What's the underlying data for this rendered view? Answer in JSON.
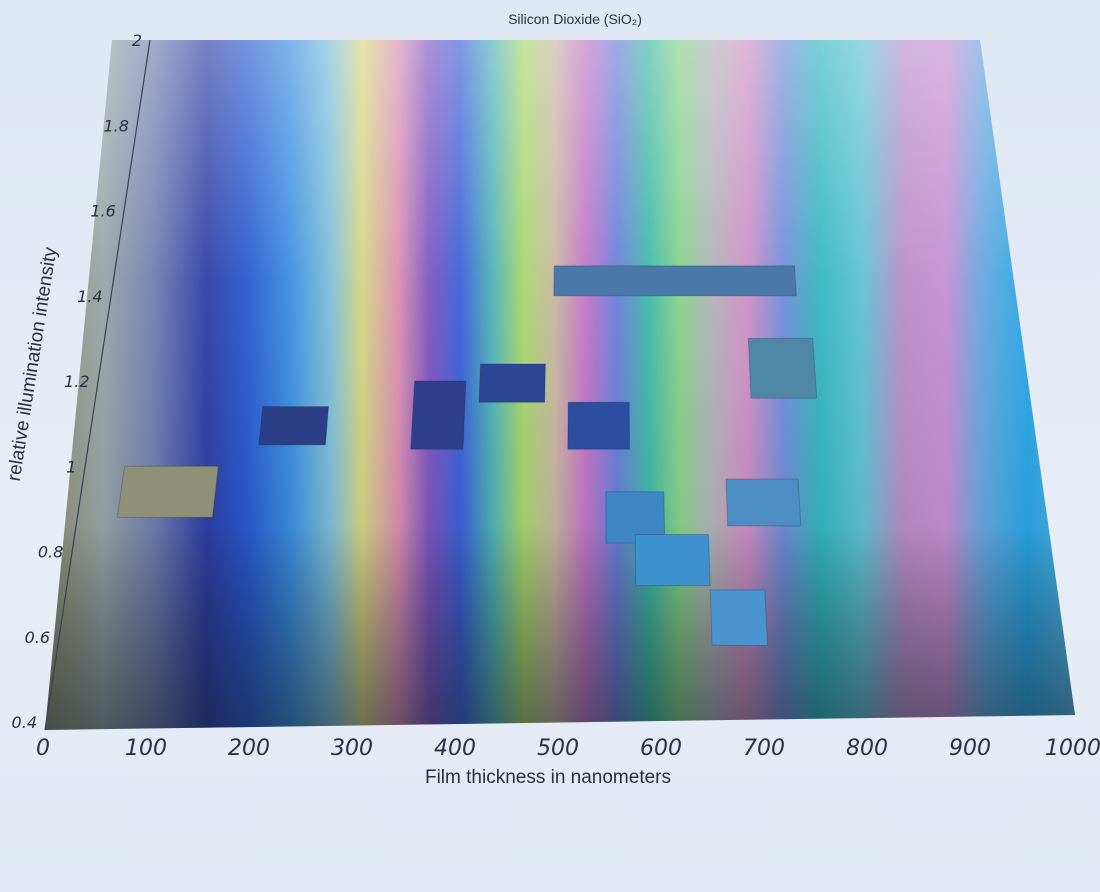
{
  "chart_data": {
    "type": "heatmap",
    "title": "Silicon Dioxide (SiO₂)",
    "xlabel": "Film thickness in nanometers",
    "ylabel": "relative illumination intensity",
    "xlim": [
      0,
      1000
    ],
    "ylim": [
      0.4,
      2
    ],
    "x_ticks": [
      "0",
      "100",
      "200",
      "300",
      "400",
      "500",
      "600",
      "700",
      "800",
      "900",
      "1000"
    ],
    "y_ticks": [
      "0.4",
      "0.6",
      "0.8",
      "1",
      "1.2",
      "1.4",
      "1.6",
      "1.8",
      "2"
    ],
    "grid": false,
    "color_bands": [
      {
        "x": 0,
        "color": "#8a8a6a"
      },
      {
        "x": 60,
        "color": "#9aa5a8"
      },
      {
        "x": 110,
        "color": "#6f7fb0"
      },
      {
        "x": 160,
        "color": "#2f3fa6"
      },
      {
        "x": 200,
        "color": "#2a5bd0"
      },
      {
        "x": 240,
        "color": "#3a8ee0"
      },
      {
        "x": 280,
        "color": "#7fc0d8"
      },
      {
        "x": 310,
        "color": "#d6d682"
      },
      {
        "x": 345,
        "color": "#d88fb4"
      },
      {
        "x": 375,
        "color": "#7c55c2"
      },
      {
        "x": 405,
        "color": "#3b63d8"
      },
      {
        "x": 435,
        "color": "#4fb2b8"
      },
      {
        "x": 465,
        "color": "#a8d76c"
      },
      {
        "x": 495,
        "color": "#c9b6a2"
      },
      {
        "x": 525,
        "color": "#c075c8"
      },
      {
        "x": 555,
        "color": "#6a7fd8"
      },
      {
        "x": 585,
        "color": "#3fb9a8"
      },
      {
        "x": 615,
        "color": "#86d38a"
      },
      {
        "x": 645,
        "color": "#b0b4b8"
      },
      {
        "x": 680,
        "color": "#cf8fc6"
      },
      {
        "x": 715,
        "color": "#6f8ed8"
      },
      {
        "x": 750,
        "color": "#33b7c0"
      },
      {
        "x": 790,
        "color": "#5fc2d4"
      },
      {
        "x": 830,
        "color": "#b78fc8"
      },
      {
        "x": 870,
        "color": "#c78ed2"
      },
      {
        "x": 910,
        "color": "#5fa8e0"
      },
      {
        "x": 950,
        "color": "#2aa6e6"
      },
      {
        "x": 1000,
        "color": "#5db4df"
      }
    ],
    "samples": [
      {
        "x": [
          42,
          140
        ],
        "y": [
          0.88,
          1.0
        ],
        "color": "#8f9078"
      },
      {
        "x": [
          180,
          250
        ],
        "y": [
          1.05,
          1.14
        ],
        "color": "#2c3f86"
      },
      {
        "x": [
          340,
          395
        ],
        "y": [
          1.04,
          1.2
        ],
        "color": "#2f3f8c"
      },
      {
        "x": [
          410,
          480
        ],
        "y": [
          1.15,
          1.24
        ],
        "color": "#2e4495"
      },
      {
        "x": [
          505,
          570
        ],
        "y": [
          1.04,
          1.15
        ],
        "color": "#2c4da0"
      },
      {
        "x": [
          488,
          755
        ],
        "y": [
          1.4,
          1.47
        ],
        "color": "#4a78a8"
      },
      {
        "x": [
          700,
          770
        ],
        "y": [
          1.16,
          1.3
        ],
        "color": "#4f87a6"
      },
      {
        "x": [
          545,
          605
        ],
        "y": [
          0.82,
          0.94
        ],
        "color": "#3f86c4"
      },
      {
        "x": [
          670,
          745
        ],
        "y": [
          0.86,
          0.97
        ],
        "color": "#4d8fc4"
      },
      {
        "x": [
          575,
          650
        ],
        "y": [
          0.72,
          0.84
        ],
        "color": "#3f90cf"
      },
      {
        "x": [
          650,
          705
        ],
        "y": [
          0.58,
          0.71
        ],
        "color": "#4a95cf"
      }
    ]
  }
}
